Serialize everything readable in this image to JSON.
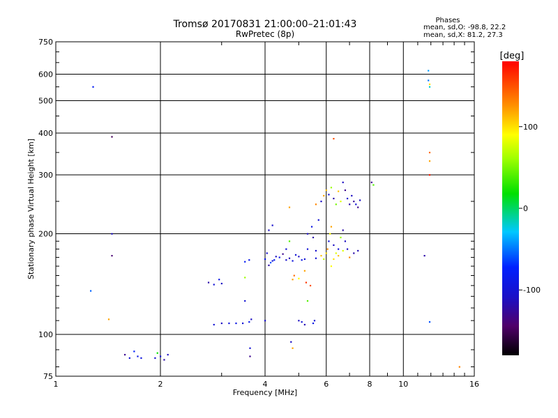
{
  "chart_data": {
    "type": "scatter",
    "title": "Tromsø 20170831 21:00:00–21:01:43",
    "subtitle": "RwPretec (8p)",
    "info": {
      "heading": "Phases",
      "line_o": "mean, sd,O: -98.8, 22.2",
      "line_x": "mean, sd,X:  81.2, 27.3"
    },
    "xlabel": "Frequency [MHz]",
    "ylabel": "Stationary phase Virtual Height [km]",
    "x_scale": "log",
    "y_scale": "log",
    "xlim": [
      1,
      16
    ],
    "ylim": [
      75,
      750
    ],
    "x_ticks": [
      {
        "v": 1,
        "label": "1"
      },
      {
        "v": 2,
        "label": "2"
      },
      {
        "v": 4,
        "label": "4"
      },
      {
        "v": 6,
        "label": "6"
      },
      {
        "v": 8,
        "label": "8"
      },
      {
        "v": 10,
        "label": "10"
      },
      {
        "v": 16,
        "label": "16"
      }
    ],
    "y_ticks": [
      {
        "v": 75,
        "label": "75"
      },
      {
        "v": 100,
        "label": "100"
      },
      {
        "v": 200,
        "label": "200"
      },
      {
        "v": 300,
        "label": "300"
      },
      {
        "v": 400,
        "label": "400"
      },
      {
        "v": 500,
        "label": "500"
      },
      {
        "v": 600,
        "label": "600"
      },
      {
        "v": 750,
        "label": "750"
      }
    ],
    "grid": true,
    "colorbar": {
      "unit": "[deg]",
      "range": [
        -180,
        180
      ],
      "ticks": [
        {
          "v": 100,
          "label": "100"
        },
        {
          "v": 0,
          "label": "0"
        },
        {
          "v": -100,
          "label": "-100"
        }
      ]
    },
    "points": [
      [
        1.28,
        550,
        -80
      ],
      [
        1.45,
        390,
        -150
      ],
      [
        1.45,
        200,
        -110
      ],
      [
        1.45,
        172,
        -140
      ],
      [
        1.26,
        135,
        -55
      ],
      [
        1.42,
        111,
        120
      ],
      [
        1.58,
        87,
        -130
      ],
      [
        1.63,
        85,
        -100
      ],
      [
        1.68,
        89,
        -75
      ],
      [
        1.72,
        86,
        -90
      ],
      [
        1.76,
        85,
        -95
      ],
      [
        1.93,
        85,
        -105
      ],
      [
        1.96,
        88,
        20
      ],
      [
        2.0,
        86,
        -100
      ],
      [
        2.05,
        84,
        -120
      ],
      [
        2.1,
        87,
        -110
      ],
      [
        2.75,
        143,
        -120
      ],
      [
        2.85,
        141,
        -100
      ],
      [
        2.95,
        146,
        -90
      ],
      [
        3.0,
        142,
        -110
      ],
      [
        2.85,
        107,
        -100
      ],
      [
        3.0,
        108,
        -110
      ],
      [
        3.15,
        108,
        -95
      ],
      [
        3.3,
        108,
        -90
      ],
      [
        3.45,
        108,
        -100
      ],
      [
        3.6,
        109,
        -85
      ],
      [
        3.65,
        111,
        -110
      ],
      [
        3.5,
        148,
        60
      ],
      [
        3.5,
        126,
        -100
      ],
      [
        3.5,
        165,
        -80
      ],
      [
        3.6,
        167,
        -90
      ],
      [
        3.62,
        91,
        -100
      ],
      [
        3.62,
        86,
        -130
      ],
      [
        4.0,
        168,
        -90
      ],
      [
        4.05,
        175,
        -105
      ],
      [
        4.1,
        161,
        -120
      ],
      [
        4.15,
        164,
        -60
      ],
      [
        4.2,
        166,
        -100
      ],
      [
        4.25,
        167,
        -80
      ],
      [
        4.3,
        171,
        -110
      ],
      [
        4.4,
        170,
        -90
      ],
      [
        4.5,
        174,
        -130
      ],
      [
        4.6,
        167,
        -105
      ],
      [
        4.7,
        169,
        -115
      ],
      [
        4.8,
        166,
        -95
      ],
      [
        4.9,
        173,
        -100
      ],
      [
        5.0,
        171,
        -110
      ],
      [
        5.1,
        167,
        -90
      ],
      [
        5.2,
        168,
        -100
      ],
      [
        4.1,
        205,
        -110
      ],
      [
        4.2,
        212,
        -105
      ],
      [
        4.6,
        180,
        -100
      ],
      [
        4.7,
        190,
        40
      ],
      [
        4.7,
        240,
        120
      ],
      [
        4.8,
        146,
        120
      ],
      [
        4.85,
        150,
        140
      ],
      [
        5.0,
        147,
        90
      ],
      [
        5.2,
        155,
        120
      ],
      [
        5.25,
        143,
        160
      ],
      [
        5.4,
        140,
        150
      ],
      [
        5.3,
        126,
        40
      ],
      [
        5.3,
        180,
        -100
      ],
      [
        5.3,
        200,
        -110
      ],
      [
        5.45,
        210,
        -90
      ],
      [
        5.5,
        195,
        -120
      ],
      [
        5.6,
        178,
        -105
      ],
      [
        5.7,
        220,
        -100
      ],
      [
        5.8,
        172,
        110
      ],
      [
        5.9,
        168,
        70
      ],
      [
        6.0,
        175,
        100
      ],
      [
        6.05,
        180,
        130
      ],
      [
        6.1,
        190,
        -100
      ],
      [
        6.15,
        200,
        90
      ],
      [
        6.2,
        210,
        120
      ],
      [
        6.3,
        185,
        -110
      ],
      [
        6.4,
        175,
        80
      ],
      [
        6.5,
        180,
        -100
      ],
      [
        6.6,
        195,
        60
      ],
      [
        6.7,
        205,
        -120
      ],
      [
        6.8,
        190,
        -110
      ],
      [
        5.6,
        245,
        130
      ],
      [
        5.8,
        250,
        -110
      ],
      [
        5.9,
        260,
        120
      ],
      [
        6.0,
        270,
        110
      ],
      [
        6.1,
        262,
        -100
      ],
      [
        6.2,
        275,
        60
      ],
      [
        6.3,
        255,
        -120
      ],
      [
        6.4,
        245,
        50
      ],
      [
        6.5,
        268,
        110
      ],
      [
        6.6,
        250,
        80
      ],
      [
        6.7,
        285,
        -110
      ],
      [
        6.8,
        270,
        -130
      ],
      [
        6.9,
        255,
        -105
      ],
      [
        7.0,
        245,
        -120
      ],
      [
        7.1,
        260,
        -110
      ],
      [
        7.2,
        250,
        -125
      ],
      [
        7.3,
        245,
        -100
      ],
      [
        7.4,
        240,
        -130
      ],
      [
        7.5,
        252,
        -110
      ],
      [
        6.3,
        385,
        150
      ],
      [
        6.2,
        160,
        90
      ],
      [
        6.3,
        168,
        100
      ],
      [
        6.5,
        172,
        110
      ],
      [
        6.7,
        178,
        80
      ],
      [
        6.9,
        180,
        -110
      ],
      [
        7.0,
        170,
        130
      ],
      [
        7.2,
        175,
        -120
      ],
      [
        7.4,
        178,
        -115
      ],
      [
        5.6,
        169,
        -100
      ],
      [
        5.0,
        110,
        -110
      ],
      [
        5.1,
        109,
        -100
      ],
      [
        5.2,
        107,
        -115
      ],
      [
        5.5,
        108,
        -90
      ],
      [
        5.55,
        110,
        -100
      ],
      [
        4.0,
        110,
        -105
      ],
      [
        4.75,
        95,
        -110
      ],
      [
        4.8,
        91,
        120
      ],
      [
        8.1,
        285,
        -130
      ],
      [
        8.2,
        280,
        40
      ],
      [
        11.8,
        615,
        -40
      ],
      [
        11.8,
        575,
        -50
      ],
      [
        11.9,
        560,
        100
      ],
      [
        11.9,
        550,
        -20
      ],
      [
        11.9,
        350,
        140
      ],
      [
        11.9,
        330,
        120
      ],
      [
        11.9,
        300,
        170
      ],
      [
        11.5,
        172,
        -120
      ],
      [
        11.9,
        109,
        -60
      ],
      [
        14.5,
        80,
        130
      ]
    ]
  }
}
